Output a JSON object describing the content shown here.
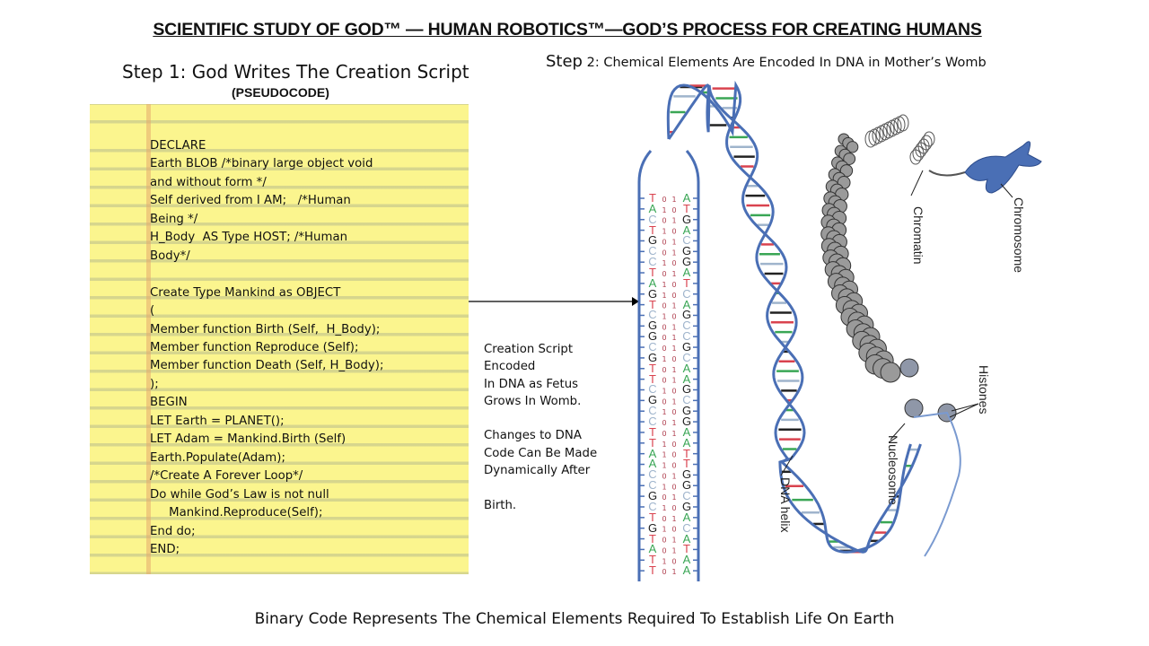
{
  "title": "SCIENTIFIC STUDY OF GOD™ — HUMAN ROBOTICS™—GOD’S PROCESS FOR CREATING HUMANS",
  "step1": {
    "heading": "Step 1: God Writes The Creation Script",
    "subheading": "(PSEUDOCODE)",
    "code_lines": [
      "DECLARE",
      "Earth BLOB /*binary large object void",
      "and without form */",
      "Self derived from I AM;   /*Human",
      "Being */",
      "H_Body  AS Type HOST; /*Human",
      "Body*/",
      "",
      "Create Type Mankind as OBJECT",
      "(",
      "Member function Birth (Self,  H_Body);",
      "Member function Reproduce (Self);",
      "Member function Death (Self, H_Body);",
      ");",
      "BEGIN",
      "LET Earth = PLANET();",
      "LET Adam = Mankind.Birth (Self)",
      "Earth.Populate(Adam);",
      "/*Create A Forever Loop*/",
      "Do while God’s Law is not null",
      "     Mankind.Reproduce(Self);",
      "End do;",
      "END;"
    ]
  },
  "step2": {
    "heading_step": "Step",
    "heading_rest": " 2: Chemical Elements Are Encoded In DNA in Mother’s Womb"
  },
  "note": {
    "text": "Creation Script\nEncoded\nIn DNA as Fetus\nGrows In Womb.\n\nChanges to DNA\nCode Can Be Made\nDynamically After\n\nBirth."
  },
  "dna": {
    "strand_right": "ATGACGGATCAGCCGCAAGCGGAATTGGCGACATAA",
    "strand_left": "TACTGCCTAGTCGGCGTTCGCCTTAACCGCTGTATT",
    "binary_left": "010100101101000100101001110101010010",
    "binary_right": "101011010010111011010110001010101101",
    "base_colors": {
      "A": "#3aa655",
      "T": "#d9434f",
      "G": "#222222",
      "C": "#9fb4cc"
    },
    "backbone_color": "#4a6fb5",
    "labels": {
      "chromatin": "Chromatin",
      "chromosome": "Chromosome",
      "histones": "Histones",
      "nucleosome": "Nucleosome",
      "dna_helix": "DNA helix"
    }
  },
  "footer": "Binary Code Represents The Chemical Elements Required To Establish Life On Earth"
}
